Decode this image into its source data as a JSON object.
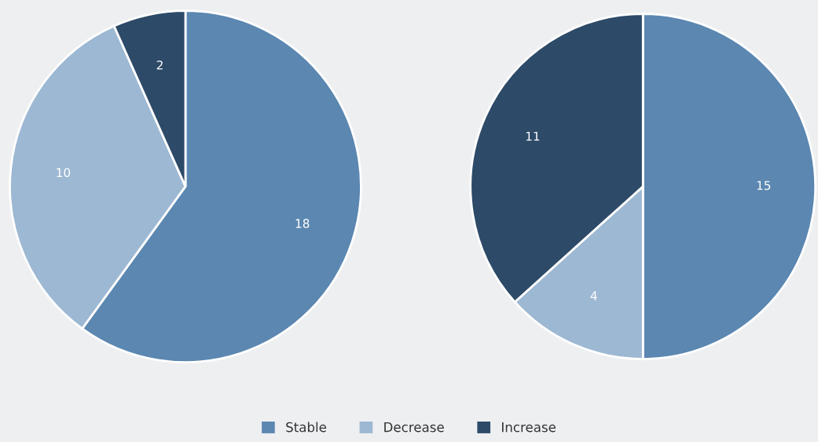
{
  "chart_data": [
    {
      "type": "pie",
      "categories": [
        "Stable",
        "Decrease",
        "Increase"
      ],
      "values": [
        18,
        10,
        2
      ],
      "colors": [
        "#5b87b1",
        "#9db8d3",
        "#2d4a68"
      ],
      "data_labels": true,
      "legend": "bottom"
    },
    {
      "type": "pie",
      "categories": [
        null,
        null,
        null
      ],
      "values": [
        15,
        4,
        11
      ],
      "colors": [
        "#5b87b1",
        "#9db8d3",
        "#2d4a68"
      ],
      "data_labels": true
    }
  ]
}
